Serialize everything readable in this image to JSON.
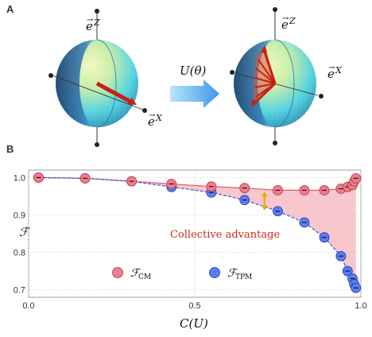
{
  "panel_a": {
    "label": "A",
    "left_sphere": {
      "axis_z_label": "e",
      "axis_z_sup": "Z",
      "axis_x_label": "e",
      "axis_x_sup": "X"
    },
    "right_sphere": {
      "axis_z_label": "e",
      "axis_z_sup": "Z",
      "axis_x_label": "e",
      "axis_x_sup": "X"
    },
    "operator_label": "U(θ)",
    "colors": {
      "sphere_cap": "#e6f4a0",
      "sphere_body": "#4fd4e0",
      "arrow": "#d42a1c",
      "transform_arrow": "#4aa3e8"
    }
  },
  "panel_b": {
    "label": "B",
    "chart_data": {
      "type": "line",
      "xlabel": "C(U)",
      "ylabel": "ℱ",
      "xlim": [
        0,
        1.0
      ],
      "ylim": [
        0.68,
        1.02
      ],
      "xticks": [
        "0.0",
        "0.5",
        "1.0"
      ],
      "xtick_values": [
        0,
        0.5,
        1.0
      ],
      "yticks": [
        "1.0",
        "0.9",
        "0.8",
        "0.7"
      ],
      "ytick_values": [
        1.0,
        0.9,
        0.8,
        0.7
      ],
      "grid": true,
      "annotation": "Collective advantage",
      "shaded_region": "between series",
      "series": [
        {
          "name": "ℱ",
          "name_sub": "CM",
          "color": "#e8556a",
          "fill": "#f4b4bb",
          "x": [
            0.03,
            0.17,
            0.31,
            0.43,
            0.55,
            0.65,
            0.75,
            0.83,
            0.89,
            0.94,
            0.96,
            0.975,
            0.98,
            0.985
          ],
          "y": [
            1.0,
            0.998,
            0.99,
            0.983,
            0.976,
            0.972,
            0.966,
            0.966,
            0.966,
            0.97,
            0.975,
            0.98,
            0.99,
            0.998
          ]
        },
        {
          "name": "ℱ",
          "name_sub": "TPM",
          "color": "#3a55d8",
          "fill": "#6b8cf0",
          "x": [
            0.03,
            0.17,
            0.31,
            0.43,
            0.55,
            0.65,
            0.75,
            0.83,
            0.89,
            0.94,
            0.96,
            0.975,
            0.98,
            0.985
          ],
          "y": [
            1.0,
            0.998,
            0.99,
            0.975,
            0.96,
            0.94,
            0.91,
            0.88,
            0.84,
            0.79,
            0.75,
            0.73,
            0.715,
            0.705
          ]
        }
      ],
      "legend_placement": "bottom-left"
    }
  }
}
